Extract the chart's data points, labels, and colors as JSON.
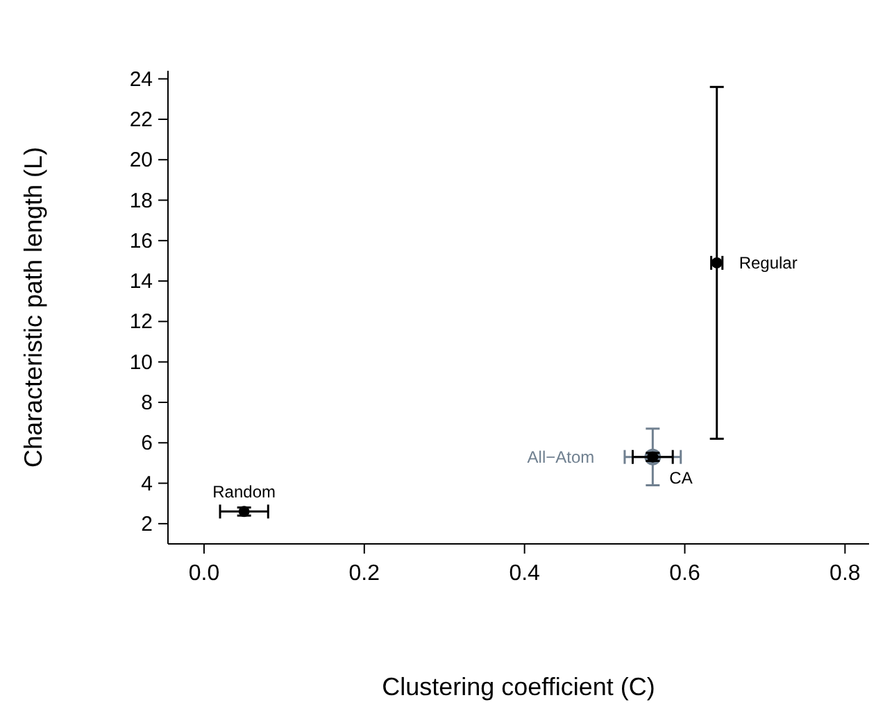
{
  "chart_data": {
    "type": "scatter",
    "xlabel": "Clustering coefficient (C)",
    "ylabel": "Characteristic path length (L)",
    "xlim": [
      -0.045,
      0.83
    ],
    "ylim": [
      1.0,
      24.4
    ],
    "xticks": [
      {
        "value": 0,
        "label": "0.0"
      },
      {
        "value": 0.2,
        "label": "0.2"
      },
      {
        "value": 0.4,
        "label": "0.4"
      },
      {
        "value": 0.6,
        "label": "0.6"
      },
      {
        "value": 0.8,
        "label": "0.8"
      }
    ],
    "yticks": [
      2,
      4,
      6,
      8,
      10,
      12,
      14,
      16,
      18,
      20,
      22,
      24
    ],
    "grid": false,
    "marker": "circle",
    "series": [
      {
        "name": "Random",
        "color": "#000000",
        "x": [
          0.05
        ],
        "values": [
          2.6
        ],
        "errors": [
          0.2
        ],
        "xerrors": [
          0.03
        ]
      },
      {
        "name": "All−Atom",
        "color": "#708090",
        "x": [
          0.56
        ],
        "values": [
          5.3
        ],
        "errors": [
          [
            3.9,
            6.7
          ]
        ],
        "xerrors": [
          0.035
        ]
      },
      {
        "name": "CA",
        "color": "#000000",
        "x": [
          0.56
        ],
        "values": [
          5.3
        ],
        "errors": [
          0.2
        ],
        "xerrors": [
          0.025
        ]
      },
      {
        "name": "Regular",
        "color": "#000000",
        "x": [
          0.64
        ],
        "values": [
          14.9
        ],
        "errors": [
          [
            6.2,
            23.6
          ]
        ],
        "xerrors": [
          0.007
        ]
      }
    ]
  }
}
